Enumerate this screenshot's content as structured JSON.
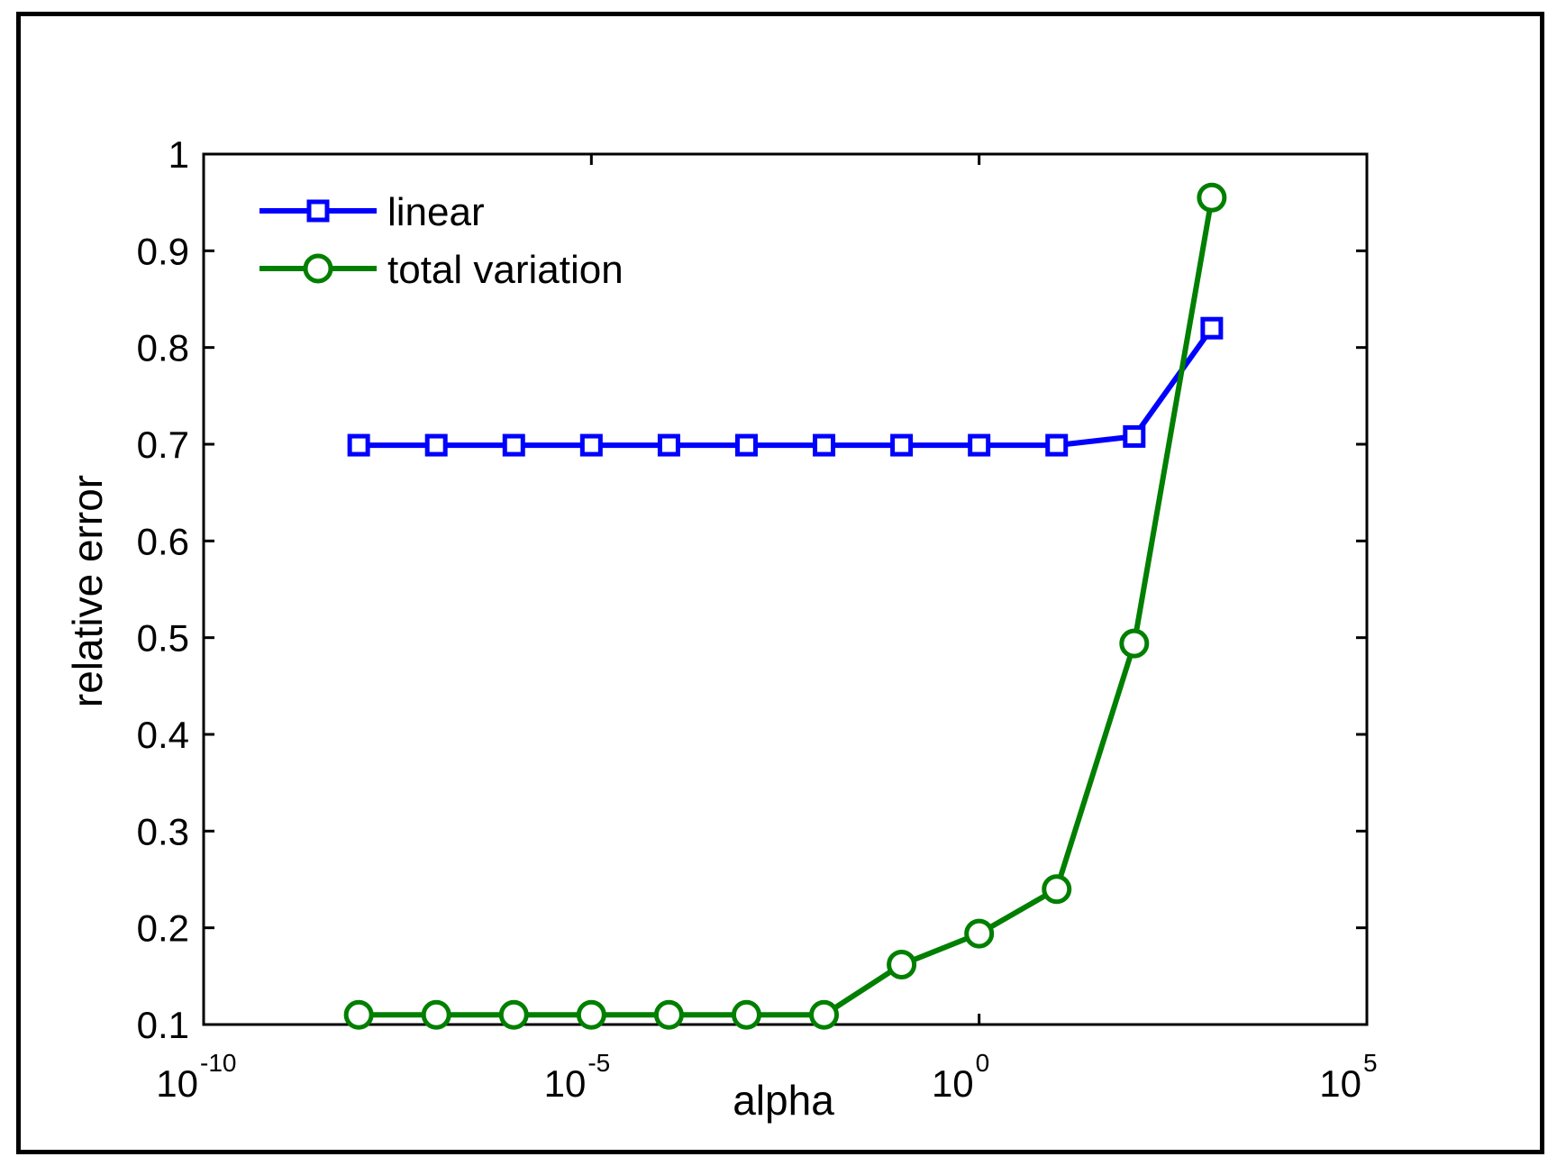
{
  "chart_data": {
    "type": "line",
    "xlabel": "alpha",
    "ylabel": "relative error",
    "xscale": "log",
    "xlim": [
      1e-10,
      100000
    ],
    "ylim": [
      0.1,
      1
    ],
    "x_ticks": [
      {
        "base": "10",
        "exp": "-10",
        "value": 1e-10
      },
      {
        "base": "10",
        "exp": "-5",
        "value": 1e-05
      },
      {
        "base": "10",
        "exp": "0",
        "value": 1
      },
      {
        "base": "10",
        "exp": "5",
        "value": 100000
      }
    ],
    "y_ticks": [
      "0.1",
      "0.2",
      "0.3",
      "0.4",
      "0.5",
      "0.6",
      "0.7",
      "0.8",
      "0.9",
      "1"
    ],
    "legend_position": "top-left",
    "grid": false,
    "x": [
      1e-08,
      1e-07,
      1e-06,
      1e-05,
      0.0001,
      0.001,
      0.01,
      0.1,
      1,
      10,
      100,
      1000
    ],
    "series": [
      {
        "name": "linear",
        "color": "#0000ff",
        "marker": "square",
        "values": [
          0.699,
          0.699,
          0.699,
          0.699,
          0.699,
          0.699,
          0.699,
          0.699,
          0.699,
          0.699,
          0.708,
          0.82
        ]
      },
      {
        "name": "total variation",
        "color": "#007f00",
        "marker": "circle",
        "values": [
          0.11,
          0.11,
          0.11,
          0.11,
          0.11,
          0.11,
          0.11,
          0.162,
          0.194,
          0.24,
          0.494,
          0.955
        ]
      }
    ]
  }
}
